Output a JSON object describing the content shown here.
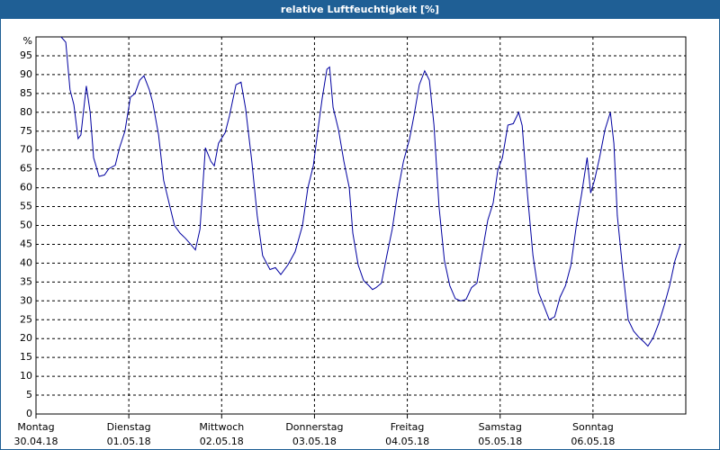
{
  "chart_data": {
    "type": "line",
    "title": "relative Luftfeuchtigkeit [%]",
    "y_unit": "%",
    "xlim": [
      0,
      168
    ],
    "xticks": [
      {
        "value": 0,
        "label": [
          "Montag",
          "30.04.18"
        ]
      },
      {
        "value": 24,
        "label": [
          "Dienstag",
          "01.05.18"
        ]
      },
      {
        "value": 48,
        "label": [
          "Mittwoch",
          "02.05.18"
        ]
      },
      {
        "value": 72,
        "label": [
          "Donnerstag",
          "03.05.18"
        ]
      },
      {
        "value": 96,
        "label": [
          "Freitag",
          "04.05.18"
        ]
      },
      {
        "value": 120,
        "label": [
          "Samstag",
          "05.05.18"
        ]
      },
      {
        "value": 144,
        "label": [
          "Sonntag",
          "06.05.18"
        ]
      }
    ],
    "ylim": [
      0,
      100
    ],
    "yticks": [
      0,
      5,
      10,
      15,
      20,
      25,
      30,
      35,
      40,
      45,
      50,
      55,
      60,
      65,
      70,
      75,
      80,
      85,
      90,
      95
    ],
    "grid": true,
    "x": [
      6.5,
      7.7,
      8.8,
      9.8,
      10.9,
      11.6,
      13,
      14,
      14.9,
      16.3,
      17.7,
      18.8,
      20.5,
      21.6,
      23,
      24.4,
      25.6,
      26.8,
      27.9,
      29.3,
      30.2,
      31.7,
      33,
      34.4,
      35.8,
      37.2,
      38.6,
      40,
      41.2,
      42.4,
      43.8,
      45.2,
      46.1,
      47.2,
      48.9,
      50,
      51.7,
      53,
      54.2,
      55.8,
      57.2,
      58.6,
      60.5,
      61.9,
      63.3,
      65.1,
      67,
      68.9,
      70.3,
      71.7,
      72.9,
      74,
      75.2,
      75.9,
      76.8,
      78.2,
      79.6,
      81,
      81.9,
      83.3,
      84.7,
      86.1,
      87,
      87.9,
      89.3,
      90.7,
      92.1,
      93.5,
      95,
      96.6,
      97.7,
      99.1,
      100.5,
      101.7,
      102.9,
      104.2,
      105.6,
      107,
      108.4,
      109.8,
      111.2,
      112.6,
      114,
      115.4,
      116.8,
      118.2,
      119.4,
      120.6,
      122,
      123.4,
      124.8,
      125.7,
      126.9,
      128.5,
      129.9,
      131.3,
      132.7,
      134.1,
      135.5,
      136.9,
      138.3,
      139.7,
      141.1,
      142.5,
      143.4,
      144.4,
      145.7,
      147.1,
      148.5,
      149.4,
      150.3,
      151.7,
      153.1,
      154.5,
      155.9,
      157.3,
      158.2,
      159.6,
      161,
      162.4,
      163.8,
      165.2,
      166.6
    ],
    "series": [
      {
        "color": "#0000a0",
        "values": [
          100,
          98.6,
          86,
          82,
          73,
          74,
          87,
          80,
          68,
          63,
          63.4,
          65,
          66,
          70.6,
          75,
          84,
          85,
          88.5,
          89.7,
          86,
          82.5,
          74,
          62,
          56,
          50,
          48,
          46.6,
          45,
          43.5,
          49,
          70.6,
          67,
          65.8,
          71.8,
          74.6,
          79,
          87.3,
          88,
          81,
          67,
          52.6,
          42,
          38.3,
          38.8,
          37,
          39.5,
          43,
          50,
          60,
          65.8,
          75.4,
          83.7,
          91.4,
          92,
          81.3,
          75.4,
          67,
          60,
          48,
          39.5,
          35.4,
          34,
          33,
          33.5,
          34.7,
          42,
          49,
          58.6,
          67,
          73,
          79,
          87.3,
          91,
          88.5,
          76.6,
          55,
          40.7,
          34,
          30.6,
          30,
          30.4,
          33.5,
          34.7,
          43,
          51.4,
          56,
          64.6,
          68,
          76.6,
          77,
          80,
          76.5,
          60,
          42,
          32.3,
          28.7,
          25,
          25.8,
          31,
          34,
          39.5,
          50,
          58.6,
          68,
          58.6,
          62,
          68,
          75.4,
          80,
          71.8,
          52.6,
          38.3,
          25,
          22,
          20.3,
          19,
          18,
          20.3,
          24,
          28.7,
          34,
          40.7,
          45
        ]
      }
    ]
  }
}
